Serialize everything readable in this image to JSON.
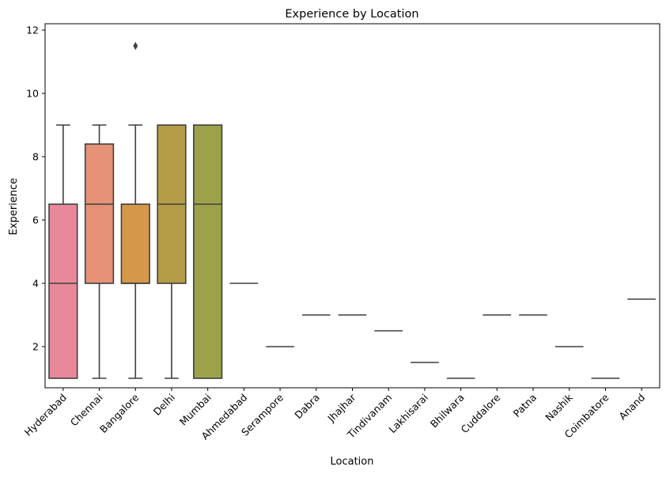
{
  "chart_data": {
    "type": "box",
    "title": "Experience by Location",
    "xlabel": "Location",
    "ylabel": "Experience",
    "ylim": [
      0.7,
      12.2
    ],
    "yticks": [
      2,
      4,
      6,
      8,
      10,
      12
    ],
    "grid": false,
    "legend": "none",
    "categories": [
      {
        "name": "Hyderabad",
        "color": "#e8899b",
        "whisker_low": 1,
        "q1": 1,
        "median": 4,
        "q3": 6.5,
        "whisker_high": 9,
        "outliers": []
      },
      {
        "name": "Chennai",
        "color": "#e59277",
        "whisker_low": 1,
        "q1": 4,
        "median": 6.5,
        "q3": 8.4,
        "whisker_high": 9,
        "outliers": []
      },
      {
        "name": "Bangalore",
        "color": "#d5984a",
        "whisker_low": 1,
        "q1": 4,
        "median": 4,
        "q3": 6.5,
        "whisker_high": 9,
        "outliers": [
          11.5
        ]
      },
      {
        "name": "Delhi",
        "color": "#b59d48",
        "whisker_low": 1,
        "q1": 4,
        "median": 6.5,
        "q3": 9,
        "whisker_high": 9,
        "outliers": []
      },
      {
        "name": "Mumbai",
        "color": "#9da24a",
        "whisker_low": 1,
        "q1": 1,
        "median": 6.5,
        "q3": 9,
        "whisker_high": 9,
        "outliers": []
      },
      {
        "name": "Ahmedabad",
        "color": "#7fa746",
        "whisker_low": 4,
        "q1": 4,
        "median": 4,
        "q3": 4,
        "whisker_high": 4,
        "outliers": []
      },
      {
        "name": "Serampore",
        "color": "#4aab62",
        "whisker_low": 2,
        "q1": 2,
        "median": 2,
        "q3": 2,
        "whisker_high": 2,
        "outliers": []
      },
      {
        "name": "Dabra",
        "color": "#4aa88c",
        "whisker_low": 3,
        "q1": 3,
        "median": 3,
        "q3": 3,
        "whisker_high": 3,
        "outliers": []
      },
      {
        "name": "Jhajhar",
        "color": "#4aa6a0",
        "whisker_low": 3,
        "q1": 3,
        "median": 3,
        "q3": 3,
        "whisker_high": 3,
        "outliers": []
      },
      {
        "name": "Tindivanam",
        "color": "#4aa4b2",
        "whisker_low": 2.5,
        "q1": 2.5,
        "median": 2.5,
        "q3": 2.5,
        "whisker_high": 2.5,
        "outliers": []
      },
      {
        "name": "Lakhisarai",
        "color": "#4aa1c7",
        "whisker_low": 1.5,
        "q1": 1.5,
        "median": 1.5,
        "q3": 1.5,
        "whisker_high": 1.5,
        "outliers": []
      },
      {
        "name": "Bhilwara",
        "color": "#5a9ee0",
        "whisker_low": 1,
        "q1": 1,
        "median": 1,
        "q3": 1,
        "whisker_high": 1,
        "outliers": []
      },
      {
        "name": "Cuddalore",
        "color": "#9a93e6",
        "whisker_low": 3,
        "q1": 3,
        "median": 3,
        "q3": 3,
        "whisker_high": 3,
        "outliers": []
      },
      {
        "name": "Patna",
        "color": "#c58ce0",
        "whisker_low": 3,
        "q1": 3,
        "median": 3,
        "q3": 3,
        "whisker_high": 3,
        "outliers": []
      },
      {
        "name": "Nashik",
        "color": "#dd86c9",
        "whisker_low": 2,
        "q1": 2,
        "median": 2,
        "q3": 2,
        "whisker_high": 2,
        "outliers": []
      },
      {
        "name": "Coimbatore",
        "color": "#e589b0",
        "whisker_low": 1,
        "q1": 1,
        "median": 1,
        "q3": 1,
        "whisker_high": 1,
        "outliers": []
      },
      {
        "name": "Anand",
        "color": "#e88aa0",
        "whisker_low": 3.5,
        "q1": 3.5,
        "median": 3.5,
        "q3": 3.5,
        "whisker_high": 3.5,
        "outliers": []
      }
    ]
  }
}
